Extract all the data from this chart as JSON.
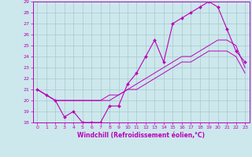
{
  "xlabel": "Windchill (Refroidissement éolien,°C)",
  "xlim": [
    -0.5,
    23.5
  ],
  "ylim": [
    18,
    29
  ],
  "xticks": [
    0,
    1,
    2,
    3,
    4,
    5,
    6,
    7,
    8,
    9,
    10,
    11,
    12,
    13,
    14,
    15,
    16,
    17,
    18,
    19,
    20,
    21,
    22,
    23
  ],
  "yticks": [
    18,
    19,
    20,
    21,
    22,
    23,
    24,
    25,
    26,
    27,
    28,
    29
  ],
  "bg_color": "#cce8ec",
  "grid_color": "#aac8cc",
  "line_color": "#bb00bb",
  "line1_x": [
    0,
    1,
    2,
    3,
    4,
    5,
    6,
    7,
    8,
    9,
    10,
    11,
    12,
    13,
    14,
    15,
    16,
    17,
    18,
    19,
    20,
    21,
    22,
    23
  ],
  "line1_y": [
    21.0,
    20.5,
    20.0,
    18.5,
    19.0,
    18.0,
    18.0,
    18.0,
    19.5,
    19.5,
    21.5,
    22.5,
    24.0,
    25.5,
    23.5,
    27.0,
    27.5,
    28.0,
    28.5,
    29.0,
    28.5,
    26.5,
    24.5,
    23.5
  ],
  "line2_x": [
    0,
    1,
    2,
    3,
    4,
    5,
    6,
    7,
    8,
    9,
    10,
    11,
    12,
    13,
    14,
    15,
    16,
    17,
    18,
    19,
    20,
    21,
    22,
    23
  ],
  "line2_y": [
    21.0,
    20.5,
    20.0,
    20.0,
    20.0,
    20.0,
    20.0,
    20.0,
    20.5,
    20.5,
    21.0,
    21.5,
    22.0,
    22.5,
    23.0,
    23.5,
    24.0,
    24.0,
    24.5,
    25.0,
    25.5,
    25.5,
    25.0,
    23.0
  ],
  "line3_x": [
    0,
    1,
    2,
    3,
    4,
    5,
    6,
    7,
    8,
    9,
    10,
    11,
    12,
    13,
    14,
    15,
    16,
    17,
    18,
    19,
    20,
    21,
    22,
    23
  ],
  "line3_y": [
    21.0,
    20.5,
    20.0,
    20.0,
    20.0,
    20.0,
    20.0,
    20.0,
    20.0,
    20.5,
    21.0,
    21.0,
    21.5,
    22.0,
    22.5,
    23.0,
    23.5,
    23.5,
    24.0,
    24.5,
    24.5,
    24.5,
    24.0,
    22.5
  ]
}
